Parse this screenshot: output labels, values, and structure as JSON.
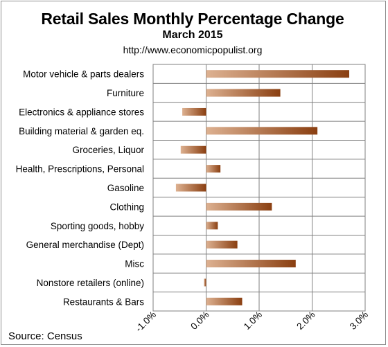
{
  "chart_data": {
    "type": "bar",
    "orientation": "horizontal",
    "title": "Retail Sales Monthly Percentage Change",
    "subtitle": "March  2015",
    "url": "http://www.economicpopulist.org",
    "source": "Source:  Census",
    "categories": [
      "Motor vehicle & parts dealers",
      "Furniture",
      "Electronics & appliance stores",
      "Building material & garden eq.",
      "Groceries, Liquor",
      "Health, Prescriptions, Personal",
      "Gasoline",
      "Clothing",
      "Sporting goods, hobby",
      "General merchandise (Dept)",
      "Misc",
      "Nonstore retailers (online)",
      "Restaurants & Bars"
    ],
    "values": [
      2.7,
      1.4,
      -0.45,
      2.1,
      -0.48,
      0.27,
      -0.57,
      1.24,
      0.22,
      0.59,
      1.69,
      -0.04,
      0.68
    ],
    "xlim": [
      -1.0,
      3.0
    ],
    "ticks": [
      -1.0,
      0.0,
      1.0,
      2.0,
      3.0
    ],
    "tick_labels": [
      "-1.0%",
      "0.0%",
      "1.0%",
      "2.0%",
      "3.0%"
    ],
    "grid": true,
    "colors": {
      "bar_light": "#ddb191",
      "bar_dark": "#8a3f11",
      "grid": "#7f7f7f"
    }
  }
}
